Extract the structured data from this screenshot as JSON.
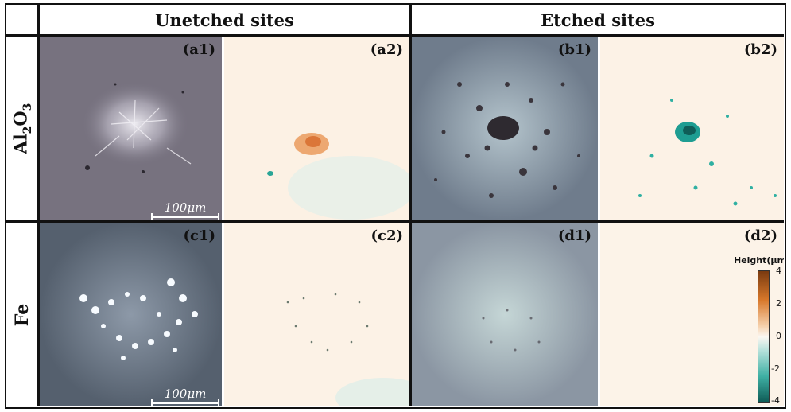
{
  "columns": {
    "unetched": "Unetched sites",
    "etched": "Etched sites"
  },
  "rows": {
    "al2o3": "Al2O3",
    "fe": "Fe"
  },
  "panels": {
    "a1": "(a1)",
    "a2": "(a2)",
    "b1": "(b1)",
    "b2": "(b2)",
    "c1": "(c1)",
    "c2": "(c2)",
    "d1": "(d1)",
    "d2": "(d2)"
  },
  "scale_bar": "100μm",
  "colorbar": {
    "title": "Height(μm)",
    "ticks": [
      "4",
      "2",
      "0",
      "-2",
      "-4"
    ],
    "colors": {
      "high": "#7a3a10",
      "mid": "#fbf7f2",
      "low": "#0e5a55"
    }
  }
}
